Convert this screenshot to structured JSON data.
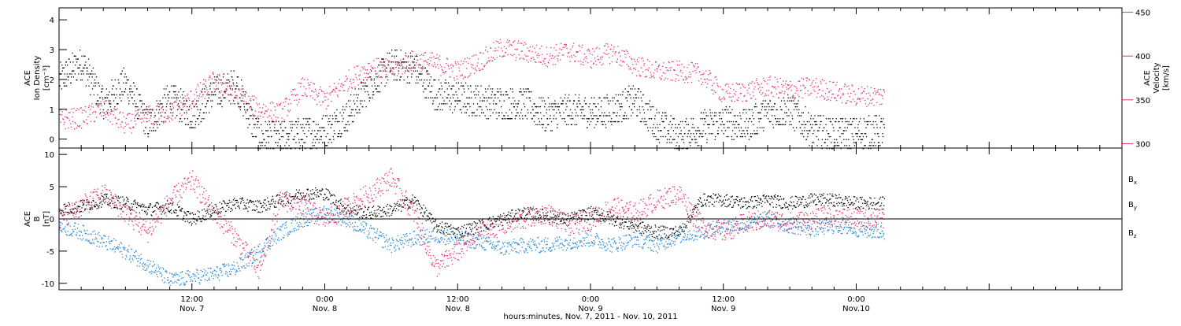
{
  "figure": {
    "xaxis_title": "hours:minutes, Nov.  7, 2011 - Nov. 10, 2011",
    "x_ticks": [
      {
        "label": "12:00",
        "sub": "Nov. 7"
      },
      {
        "label": "0:00",
        "sub": "Nov. 8"
      },
      {
        "label": "12:00",
        "sub": "Nov. 8"
      },
      {
        "label": "0:00",
        "sub": "Nov. 9"
      },
      {
        "label": "12:00",
        "sub": "Nov. 9"
      },
      {
        "label": "0:00",
        "sub": "Nov.10"
      }
    ]
  },
  "colors": {
    "black": "#000000",
    "pink": "#e8336b",
    "blue": "#1f86d9"
  },
  "chart_data": [
    {
      "type": "scatter",
      "panel": "top",
      "ylabel_left": [
        "ACE",
        "Ion Density",
        "[cm⁻³]"
      ],
      "ylabel_right": [
        "ACE",
        "Velocity",
        "[km/s]"
      ],
      "ylim_left": [
        -0.3,
        4.4
      ],
      "yticks_left": [
        0,
        1,
        2,
        3,
        4
      ],
      "ylim_right": [
        295,
        455
      ],
      "yticks_right": [
        300,
        350,
        400,
        450
      ],
      "x_hours_range": [
        0,
        96
      ],
      "data_x_range": [
        0,
        74.5
      ],
      "series": [
        {
          "color": "black",
          "axis": "left",
          "t": [
            0,
            2,
            4,
            6,
            8,
            10,
            12,
            14,
            16,
            18,
            20,
            22,
            24,
            26,
            28,
            30,
            32,
            34,
            36,
            38,
            40,
            42,
            44,
            46,
            48,
            50,
            52,
            54,
            56,
            58,
            60,
            62,
            64,
            66,
            68,
            70,
            72,
            74
          ],
          "v": [
            2.0,
            2.6,
            1.2,
            1.9,
            0.5,
            1.4,
            0.8,
            1.6,
            1.8,
            0.1,
            0.1,
            0.2,
            0.3,
            0.8,
            1.8,
            2.5,
            2.4,
            1.5,
            1.4,
            1.3,
            1.2,
            1.2,
            0.8,
            1.0,
            0.9,
            1.0,
            1.3,
            0.5,
            0.1,
            0.4,
            0.6,
            0.5,
            0.9,
            1.0,
            0.3,
            0.2,
            0.2,
            0.3
          ]
        },
        {
          "color": "pink",
          "axis": "right",
          "t": [
            0,
            2,
            4,
            6,
            8,
            10,
            12,
            14,
            16,
            18,
            20,
            22,
            24,
            26,
            28,
            30,
            32,
            34,
            36,
            38,
            40,
            42,
            44,
            46,
            48,
            50,
            52,
            54,
            56,
            58,
            60,
            62,
            64,
            66,
            68,
            70,
            72,
            74
          ],
          "v": [
            328,
            330,
            340,
            322,
            332,
            336,
            352,
            372,
            355,
            340,
            335,
            365,
            350,
            372,
            387,
            385,
            396,
            392,
            383,
            395,
            410,
            405,
            400,
            406,
            398,
            405,
            390,
            382,
            383,
            380,
            357,
            360,
            366,
            362,
            365,
            360,
            355,
            355
          ]
        }
      ]
    },
    {
      "type": "scatter",
      "panel": "bottom",
      "ylabel_left": [
        "ACE",
        "B",
        "[nT]"
      ],
      "ylim": [
        -11,
        11
      ],
      "yticks": [
        -10,
        -5,
        0,
        5,
        10
      ],
      "zero_line": true,
      "legend": [
        {
          "label": "B",
          "sub": "x",
          "color": "black"
        },
        {
          "label": "B",
          "sub": "y",
          "color": "blue"
        },
        {
          "label": "B",
          "sub": "z",
          "color": "pink"
        }
      ],
      "x_hours_range": [
        0,
        96
      ],
      "data_x_range": [
        0,
        74.5
      ],
      "series": [
        {
          "name": "Bx",
          "color": "black",
          "t": [
            0,
            2,
            4,
            6,
            8,
            10,
            12,
            14,
            16,
            18,
            20,
            22,
            24,
            26,
            28,
            30,
            32,
            34,
            36,
            38,
            40,
            42,
            44,
            46,
            48,
            50,
            52,
            54,
            56,
            58,
            60,
            62,
            64,
            66,
            68,
            70,
            72,
            74
          ],
          "v": [
            1.5,
            2.0,
            3.0,
            2.5,
            1.5,
            2.0,
            0.0,
            1.5,
            2.5,
            2.0,
            3.0,
            4.0,
            4.0,
            1.5,
            1.0,
            1.5,
            3.0,
            -1.0,
            -2.0,
            -1.0,
            0.0,
            1.0,
            0.5,
            0.0,
            1.0,
            0.0,
            -1.0,
            -2.0,
            -2.0,
            3.0,
            3.0,
            2.5,
            3.0,
            2.5,
            3.0,
            3.0,
            2.5,
            2.5
          ]
        },
        {
          "name": "By",
          "color": "blue",
          "t": [
            0,
            2,
            4,
            6,
            8,
            10,
            12,
            14,
            16,
            18,
            20,
            22,
            24,
            26,
            28,
            30,
            32,
            34,
            36,
            38,
            40,
            42,
            44,
            46,
            48,
            50,
            52,
            54,
            56,
            58,
            60,
            62,
            64,
            66,
            68,
            70,
            72,
            74
          ],
          "v": [
            -1.0,
            -2.0,
            -3.5,
            -5.0,
            -7.0,
            -9.5,
            -9.0,
            -8.5,
            -7.5,
            -5.0,
            -2.0,
            0.0,
            1.0,
            0.0,
            -2.0,
            -4.0,
            -3.0,
            -2.5,
            -3.0,
            -3.5,
            -4.5,
            -4.0,
            -4.0,
            -3.5,
            -3.0,
            -4.0,
            -3.0,
            -4.0,
            -2.5,
            -2.0,
            -1.0,
            -1.0,
            0.0,
            -1.0,
            -1.5,
            -1.0,
            -1.5,
            -2.0
          ]
        },
        {
          "name": "Bz",
          "color": "pink",
          "t": [
            0,
            2,
            4,
            6,
            8,
            10,
            12,
            14,
            16,
            18,
            20,
            22,
            24,
            26,
            28,
            30,
            32,
            34,
            36,
            38,
            40,
            42,
            44,
            46,
            48,
            50,
            52,
            54,
            56,
            58,
            60,
            62,
            64,
            66,
            68,
            70,
            72,
            74
          ],
          "v": [
            0.0,
            2.0,
            4.0,
            1.0,
            -2.0,
            3.0,
            6.0,
            1.0,
            -3.0,
            -8.0,
            3.0,
            2.0,
            0.0,
            2.0,
            4.0,
            6.5,
            1.0,
            -7.5,
            -5.0,
            -2.0,
            -1.0,
            0.0,
            1.0,
            -1.0,
            0.0,
            2.0,
            1.0,
            3.0,
            4.0,
            -1.0,
            -2.0,
            -0.5,
            0.0,
            -0.5,
            0.0,
            0.5,
            0.0,
            0.0
          ]
        }
      ]
    }
  ]
}
